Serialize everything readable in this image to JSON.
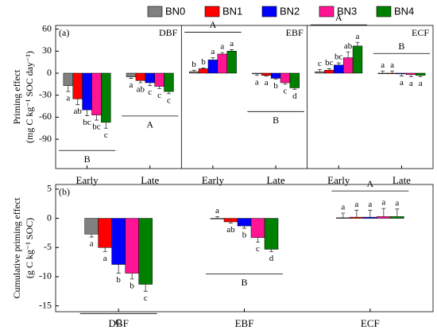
{
  "chart_data": [
    {
      "type": "bar",
      "panel": "(a)",
      "ylabel": [
        "Priming effect",
        "(mg C kg⁻¹ SOC day⁻¹)"
      ],
      "facets": [
        "DBF",
        "EBF",
        "ECF"
      ],
      "categories": [
        "Early",
        "Late",
        "Early",
        "Late",
        "Early",
        "Late"
      ],
      "ylim": [
        -130,
        65
      ],
      "yticks": [
        60,
        30,
        0,
        -30,
        -60,
        -90
      ],
      "group_letters": [
        "B",
        "A",
        "A",
        "B",
        "A",
        "B"
      ],
      "series": [
        {
          "name": "BN0",
          "color": "#808080",
          "values": [
            -17,
            -5,
            2,
            -1,
            2,
            0
          ],
          "errors": [
            8,
            2,
            2,
            2,
            3,
            3
          ],
          "letters": [
            "a",
            "a",
            "b",
            "a",
            "c",
            "a"
          ]
        },
        {
          "name": "BN1",
          "color": "#ff0000",
          "values": [
            -35,
            -10,
            6,
            -3,
            4,
            0
          ],
          "errors": [
            8,
            3,
            1,
            1,
            2,
            3
          ],
          "letters": [
            "ab",
            "ab",
            "b",
            "a",
            "bc",
            "a"
          ]
        },
        {
          "name": "BN2",
          "color": "#0000ff",
          "values": [
            -50,
            -13,
            18,
            -7,
            11,
            -1
          ],
          "errors": [
            8,
            4,
            3,
            1,
            3,
            3
          ],
          "letters": [
            "bc",
            "c",
            "a",
            "b",
            "bc",
            "a"
          ]
        },
        {
          "name": "BN3",
          "color": "#ff1493",
          "values": [
            -57,
            -18,
            26,
            -13,
            21,
            -2
          ],
          "errors": [
            7,
            3,
            2,
            2,
            8,
            3
          ],
          "letters": [
            "bc",
            "c",
            "a",
            "c",
            "ab",
            "a"
          ]
        },
        {
          "name": "BN4",
          "color": "#008000",
          "values": [
            -67,
            -25,
            30,
            -20,
            37,
            -3
          ],
          "errors": [
            8,
            3,
            2,
            2,
            5,
            2
          ],
          "letters": [
            "c",
            "c",
            "a",
            "d",
            "a",
            "a"
          ]
        }
      ]
    },
    {
      "type": "bar",
      "panel": "(b)",
      "ylabel": [
        "Cumulative priming effect",
        "(g C kg⁻¹ SOC)"
      ],
      "categories": [
        "DBF",
        "EBF",
        "ECF"
      ],
      "ylim": [
        -16,
        5.8
      ],
      "yticks": [
        5,
        0,
        -5,
        -10,
        -15
      ],
      "group_letters": [
        "C",
        "B",
        "A"
      ],
      "series": [
        {
          "color": "#808080",
          "values": [
            -2.7,
            0,
            0.1
          ],
          "errors": [
            0.5,
            0.3,
            0.8
          ],
          "letters": [
            "a",
            "a",
            "a"
          ]
        },
        {
          "color": "#ff0000",
          "values": [
            -5,
            -0.6,
            0.2
          ],
          "errors": [
            0.7,
            0.2,
            1.2
          ],
          "letters": [
            "a",
            "ab",
            "a"
          ]
        },
        {
          "color": "#0000ff",
          "values": [
            -7.9,
            -1.3,
            0.2
          ],
          "errors": [
            1.5,
            0.4,
            1.2
          ],
          "letters": [
            "b",
            "b",
            "a"
          ]
        },
        {
          "color": "#ff1493",
          "values": [
            -9.4,
            -3.3,
            0.3
          ],
          "errors": [
            1,
            0.8,
            1.4
          ],
          "letters": [
            "b",
            "c",
            "a"
          ]
        },
        {
          "color": "#008000",
          "values": [
            -11.3,
            -5.3,
            0.3
          ],
          "errors": [
            1.2,
            0.4,
            1.3
          ],
          "letters": [
            "c",
            "d",
            "a"
          ]
        }
      ]
    }
  ]
}
